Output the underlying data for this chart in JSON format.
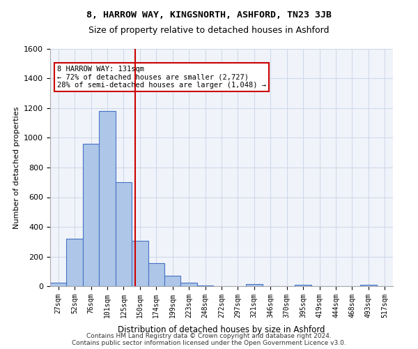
{
  "title1": "8, HARROW WAY, KINGSNORTH, ASHFORD, TN23 3JB",
  "title2": "Size of property relative to detached houses in Ashford",
  "xlabel": "Distribution of detached houses by size in Ashford",
  "ylabel": "Number of detached properties",
  "footer1": "Contains HM Land Registry data © Crown copyright and database right 2024.",
  "footer2": "Contains public sector information licensed under the Open Government Licence v3.0.",
  "annotation_title": "8 HARROW WAY: 131sqm",
  "annotation_line1": "← 72% of detached houses are smaller (2,727)",
  "annotation_line2": "28% of semi-detached houses are larger (1,048) →",
  "bar_color": "#aec6e8",
  "bar_edge_color": "#4472c4",
  "ref_line_color": "#cc0000",
  "annotation_box_color": "#cc0000",
  "grid_color": "#d0d8e8",
  "background_color": "#f0f4fa",
  "categories": [
    "27sqm",
    "52sqm",
    "76sqm",
    "101sqm",
    "125sqm",
    "150sqm",
    "174sqm",
    "199sqm",
    "223sqm",
    "248sqm",
    "272sqm",
    "297sqm",
    "321sqm",
    "346sqm",
    "370sqm",
    "395sqm",
    "419sqm",
    "444sqm",
    "468sqm",
    "493sqm",
    "517sqm"
  ],
  "values": [
    25,
    320,
    960,
    1180,
    700,
    305,
    155,
    70,
    25,
    5,
    0,
    0,
    15,
    0,
    0,
    10,
    0,
    0,
    0,
    10,
    0
  ],
  "ref_line_x": 4.72,
  "ylim": [
    0,
    1600
  ],
  "yticks": [
    0,
    200,
    400,
    600,
    800,
    1000,
    1200,
    1400,
    1600
  ]
}
